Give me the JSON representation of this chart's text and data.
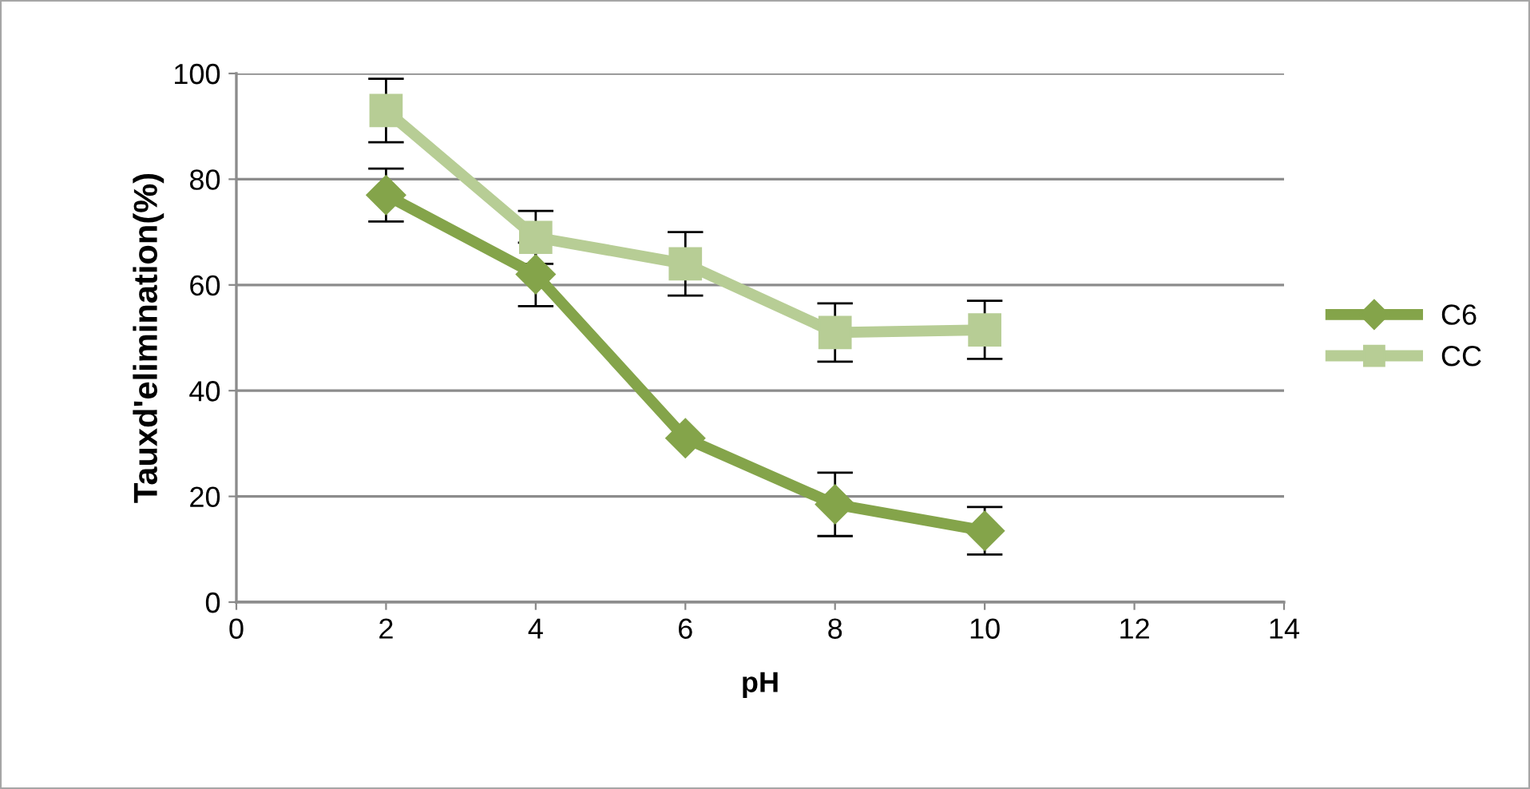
{
  "chart_data": {
    "type": "line",
    "xlabel": "pH",
    "ylabel": "Tauxd'elimination(%)",
    "x": [
      2,
      4,
      6,
      8,
      10
    ],
    "series": [
      {
        "name": "C6",
        "color": "#84a44a",
        "marker": "diamond",
        "values": [
          77,
          62,
          31,
          18.5,
          13.5
        ],
        "errors": [
          5,
          6,
          null,
          6,
          4.5
        ]
      },
      {
        "name": "CC",
        "color": "#b7cd95",
        "marker": "square",
        "values": [
          93,
          69,
          64,
          51,
          51.5
        ],
        "errors": [
          6,
          5,
          6,
          5.5,
          5.5
        ]
      }
    ],
    "xlim": [
      0,
      14
    ],
    "xticks": [
      0,
      2,
      4,
      6,
      8,
      10,
      12,
      14
    ],
    "ylim": [
      0,
      100
    ],
    "yticks": [
      0,
      20,
      40,
      60,
      80,
      100
    ],
    "grid": "y",
    "legend": "right"
  }
}
